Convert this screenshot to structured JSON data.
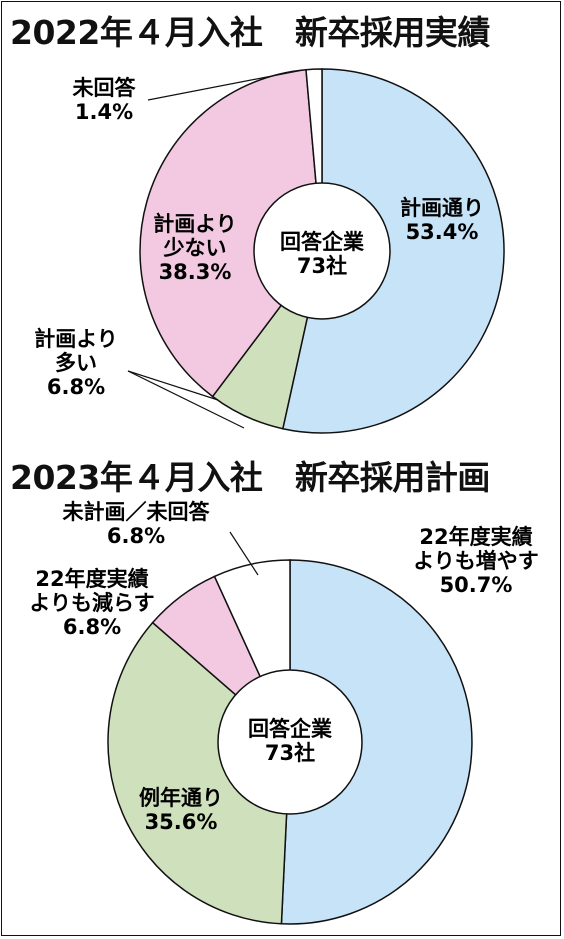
{
  "chart_data": [
    {
      "type": "pie",
      "title": "2022年４月入社　新卒採用実績",
      "center_label": [
        "回答企業",
        "73社"
      ],
      "slices": [
        {
          "name_lines": [
            "計画通り"
          ],
          "value": 53.4,
          "value_label": "53.4%",
          "color": "#c7e3f7"
        },
        {
          "name_lines": [
            "計画より",
            "多い"
          ],
          "value": 6.8,
          "value_label": "6.8%",
          "color": "#cfe0bd"
        },
        {
          "name_lines": [
            "計画より",
            "少ない"
          ],
          "value": 38.3,
          "value_label": "38.3%",
          "color": "#f3c9e2"
        },
        {
          "name_lines": [
            "未回答"
          ],
          "value": 1.4,
          "value_label": "1.4%",
          "color": "#ffffff"
        }
      ]
    },
    {
      "type": "pie",
      "title": "2023年４月入社　新卒採用計画",
      "center_label": [
        "回答企業",
        "73社"
      ],
      "slices": [
        {
          "name_lines": [
            "22年度実績",
            "よりも増やす"
          ],
          "value": 50.7,
          "value_label": "50.7%",
          "color": "#c7e3f7"
        },
        {
          "name_lines": [
            "例年通り"
          ],
          "value": 35.6,
          "value_label": "35.6%",
          "color": "#cfe0bd"
        },
        {
          "name_lines": [
            "22年度実績",
            "よりも減らす"
          ],
          "value": 6.8,
          "value_label": "6.8%",
          "color": "#f3c9e2"
        },
        {
          "name_lines": [
            "未計画／未回答"
          ],
          "value": 6.8,
          "value_label": "6.8%",
          "color": "#ffffff"
        }
      ]
    }
  ]
}
